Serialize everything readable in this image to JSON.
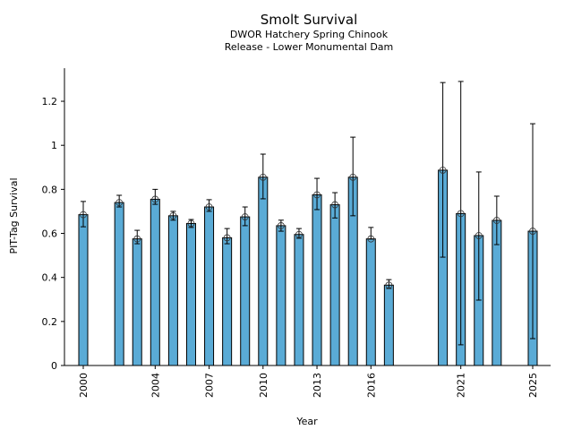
{
  "chart_data": {
    "type": "bar",
    "title": "Smolt Survival",
    "subtitle": [
      "DWOR Hatchery Spring Chinook",
      "Release - Lower Monumental Dam"
    ],
    "xlabel": "Year",
    "ylabel": "PIT-Tag Survival",
    "ylim": [
      0,
      1.35
    ],
    "xlim": [
      1999,
      2026
    ],
    "yticks": [
      0,
      0.2,
      0.4,
      0.6,
      0.8,
      1,
      1.2
    ],
    "ytick_labels": [
      "0",
      "0.2",
      "0.4",
      "0.6",
      "0.8",
      "1",
      "1.2"
    ],
    "xticks": [
      2000,
      2004,
      2007,
      2010,
      2013,
      2016,
      2021,
      2025
    ],
    "grid": false,
    "bar_color": "#5aabd6",
    "x": [
      2000,
      2002,
      2003,
      2004,
      2005,
      2006,
      2007,
      2008,
      2009,
      2010,
      2011,
      2012,
      2013,
      2014,
      2015,
      2016,
      2017,
      2020,
      2021,
      2022,
      2023,
      2025
    ],
    "values": [
      0.685,
      0.74,
      0.575,
      0.755,
      0.68,
      0.645,
      0.72,
      0.58,
      0.675,
      0.855,
      0.635,
      0.595,
      0.775,
      0.73,
      0.855,
      0.575,
      0.365,
      0.887,
      0.69,
      0.59,
      0.659,
      0.61
    ],
    "lower": [
      0.63,
      0.72,
      0.553,
      0.732,
      0.66,
      0.627,
      0.7,
      0.553,
      0.635,
      0.757,
      0.61,
      0.578,
      0.708,
      0.67,
      0.68,
      0.574,
      0.35,
      0.492,
      0.094,
      0.297,
      0.549,
      0.122
    ],
    "upper": [
      0.745,
      0.773,
      0.614,
      0.8,
      0.7,
      0.663,
      0.753,
      0.622,
      0.72,
      0.96,
      0.66,
      0.622,
      0.85,
      0.785,
      1.037,
      0.627,
      0.39,
      1.285,
      1.29,
      0.879,
      0.769,
      1.098
    ]
  }
}
